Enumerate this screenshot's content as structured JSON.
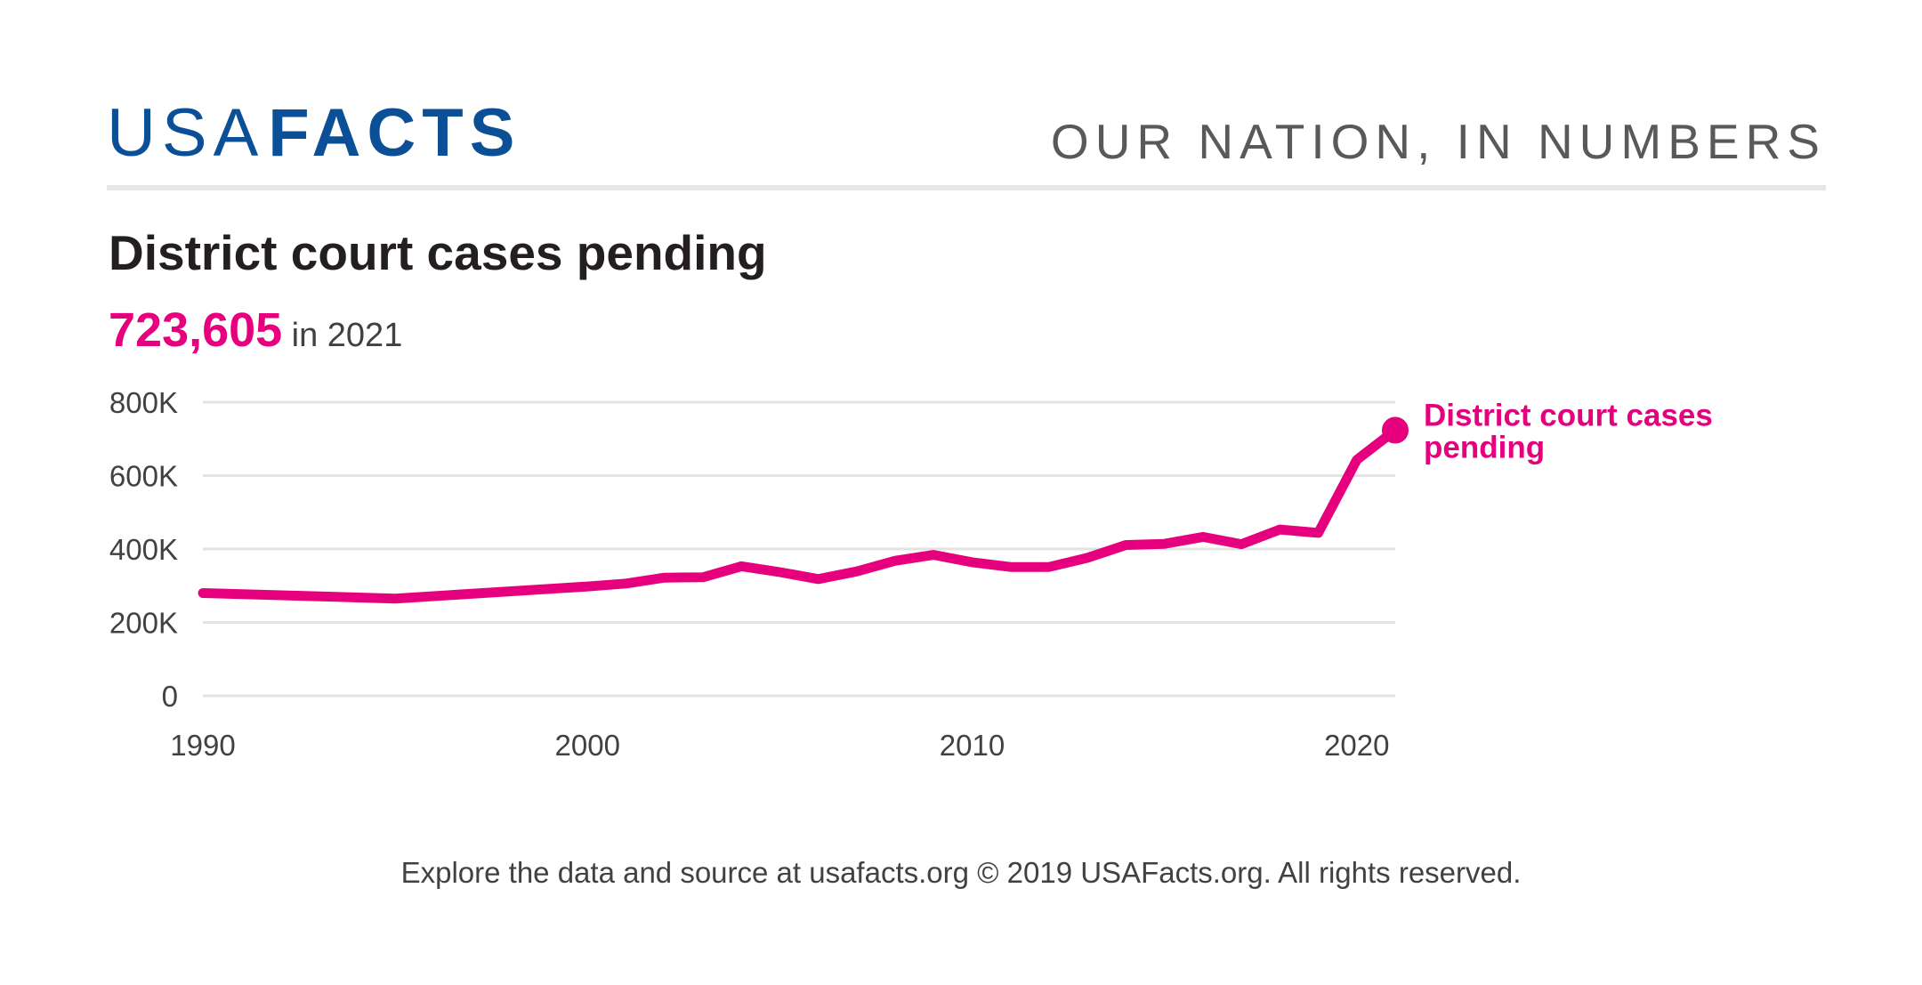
{
  "brand": {
    "usa": "USA",
    "facts": "FACTS",
    "color": "#0b4f96"
  },
  "tagline": "OUR NATION, IN NUMBERS",
  "headline": {
    "value": "723,605",
    "suffix": "in 2021"
  },
  "footer": "Explore the data and source at usafacts.org © 2019 USAFacts.org. All rights reserved.",
  "chart_data": {
    "type": "line",
    "title": "District court cases pending",
    "xlabel": "",
    "ylabel": "",
    "xlim": [
      1990,
      2021
    ],
    "ylim": [
      0,
      800000
    ],
    "x_ticks": [
      1990,
      2000,
      2010,
      2020
    ],
    "x_tick_labels": [
      "1990",
      "2000",
      "2010",
      "2020"
    ],
    "y_ticks": [
      0,
      200000,
      400000,
      600000,
      800000
    ],
    "y_tick_labels": [
      "0",
      "200K",
      "400K",
      "600K",
      "800K"
    ],
    "grid": true,
    "legend": "none",
    "series": [
      {
        "name": "District court cases pending",
        "color": "#e6007e",
        "x": [
          1990,
          1995,
          2000,
          2001,
          2002,
          2003,
          2004,
          2005,
          2006,
          2007,
          2008,
          2009,
          2010,
          2011,
          2012,
          2013,
          2014,
          2015,
          2016,
          2017,
          2018,
          2019,
          2020,
          2021
        ],
        "y": [
          280000,
          265000,
          298000,
          306000,
          322000,
          323000,
          353000,
          337000,
          318000,
          339000,
          368000,
          384000,
          364000,
          351000,
          351000,
          376000,
          411000,
          414000,
          433000,
          413000,
          453000,
          444000,
          643000,
          723605
        ]
      }
    ]
  }
}
